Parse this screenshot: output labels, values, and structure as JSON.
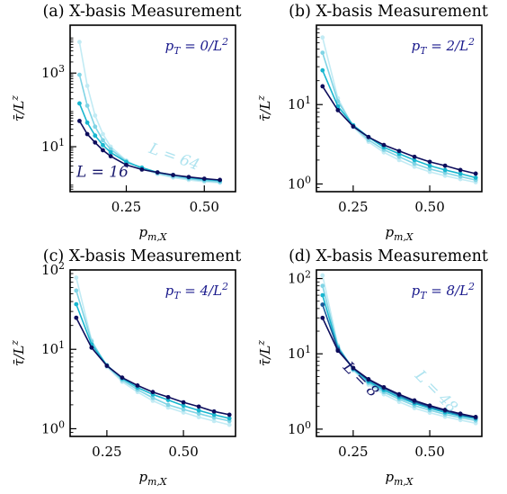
{
  "chart_data": [
    {
      "type": "line",
      "title": "(a) X-basis Measurement",
      "xlabel": "p_{m,X}",
      "ylabel": "τ̄/L^z",
      "xscale": "linear",
      "yscale": "log",
      "xlim": [
        0.07,
        0.6
      ],
      "ylim": [
        0.6,
        20000
      ],
      "xticks": [
        {
          "value": 0.25,
          "label": "0.25"
        },
        {
          "value": 0.5,
          "label": "0.50"
        }
      ],
      "yticks": [
        {
          "value": 10,
          "label": "10^1"
        },
        {
          "value": 1000,
          "label": "10^3"
        }
      ],
      "annotation": "p_T = 0/L^2",
      "series_labels": [
        {
          "text": "L = 64",
          "color": "#aee3ef",
          "x": 0.32,
          "y": 7,
          "rotate": 20
        },
        {
          "text": "L = 16",
          "color": "#1a1a6e",
          "x": 0.09,
          "y": 1.5,
          "rotate": 0
        }
      ],
      "series": [
        {
          "color": "#0d0d5c",
          "x": [
            0.1,
            0.125,
            0.15,
            0.175,
            0.2,
            0.25,
            0.3,
            0.35,
            0.4,
            0.45,
            0.5,
            0.55
          ],
          "y": [
            50,
            22,
            13,
            8,
            5.5,
            3.2,
            2.4,
            2.0,
            1.7,
            1.5,
            1.35,
            1.25
          ]
        },
        {
          "color": "#18b6cf",
          "x": [
            0.1,
            0.125,
            0.15,
            0.175,
            0.2,
            0.25,
            0.3,
            0.35,
            0.4,
            0.45,
            0.5,
            0.55
          ],
          "y": [
            150,
            45,
            20,
            11,
            7,
            3.8,
            2.7,
            2.0,
            1.7,
            1.45,
            1.3,
            1.2
          ]
        },
        {
          "color": "#80d4e5",
          "x": [
            0.1,
            0.125,
            0.15,
            0.175,
            0.2,
            0.25,
            0.3,
            0.35,
            0.4,
            0.45,
            0.5,
            0.55
          ],
          "y": [
            900,
            130,
            35,
            15,
            8.5,
            4,
            2.6,
            1.9,
            1.55,
            1.35,
            1.2,
            1.1
          ]
        },
        {
          "color": "#c2ebf4",
          "x": [
            0.1,
            0.125,
            0.15,
            0.175,
            0.2,
            0.25,
            0.3,
            0.35,
            0.4,
            0.45,
            0.5,
            0.55
          ],
          "y": [
            7000,
            450,
            70,
            22,
            10,
            4.2,
            2.5,
            1.8,
            1.45,
            1.25,
            1.12,
            1.05
          ]
        }
      ]
    },
    {
      "type": "line",
      "title": "(b) X-basis Measurement",
      "xlabel": "p_{m,X}",
      "ylabel": "τ̄/L^z",
      "xscale": "linear",
      "yscale": "log",
      "xlim": [
        0.13,
        0.67
      ],
      "ylim": [
        0.8,
        100
      ],
      "xticks": [
        {
          "value": 0.25,
          "label": "0.25"
        },
        {
          "value": 0.5,
          "label": "0.50"
        }
      ],
      "yticks": [
        {
          "value": 1,
          "label": "10^0"
        },
        {
          "value": 10,
          "label": "10^1"
        }
      ],
      "annotation": "p_T = 2/L^2",
      "series_labels": [],
      "series": [
        {
          "color": "#0d0d5c",
          "x": [
            0.15,
            0.2,
            0.25,
            0.3,
            0.35,
            0.4,
            0.45,
            0.5,
            0.55,
            0.6,
            0.65
          ],
          "y": [
            17,
            8.5,
            5.3,
            3.9,
            3.1,
            2.6,
            2.2,
            1.9,
            1.7,
            1.5,
            1.35
          ]
        },
        {
          "color": "#18b6cf",
          "x": [
            0.15,
            0.2,
            0.25,
            0.3,
            0.35,
            0.4,
            0.45,
            0.5,
            0.55,
            0.6,
            0.65
          ],
          "y": [
            27,
            9.5,
            5.5,
            3.9,
            2.9,
            2.4,
            2.0,
            1.7,
            1.5,
            1.35,
            1.2
          ]
        },
        {
          "color": "#80d4e5",
          "x": [
            0.15,
            0.2,
            0.25,
            0.3,
            0.35,
            0.4,
            0.45,
            0.5,
            0.55,
            0.6,
            0.65
          ],
          "y": [
            45,
            11,
            5.4,
            3.6,
            2.7,
            2.2,
            1.8,
            1.55,
            1.38,
            1.24,
            1.12
          ]
        },
        {
          "color": "#c2ebf4",
          "x": [
            0.15,
            0.2,
            0.25,
            0.3,
            0.35,
            0.4,
            0.45,
            0.5,
            0.55,
            0.6,
            0.65
          ],
          "y": [
            70,
            12,
            5.2,
            3.4,
            2.5,
            2.0,
            1.65,
            1.42,
            1.27,
            1.15,
            1.05
          ]
        }
      ]
    },
    {
      "type": "line",
      "title": "(c) X-basis Measurement",
      "xlabel": "p_{m,X}",
      "ylabel": "τ̄/L^z",
      "xscale": "linear",
      "yscale": "log",
      "xlim": [
        0.13,
        0.67
      ],
      "ylim": [
        0.8,
        100
      ],
      "xticks": [
        {
          "value": 0.25,
          "label": "0.25"
        },
        {
          "value": 0.5,
          "label": "0.50"
        }
      ],
      "yticks": [
        {
          "value": 1,
          "label": "10^0"
        },
        {
          "value": 10,
          "label": "10^1"
        },
        {
          "value": 100,
          "label": "10^2"
        }
      ],
      "annotation": "p_T = 4/L^2",
      "series_labels": [],
      "series": [
        {
          "color": "#0d0d5c",
          "x": [
            0.15,
            0.2,
            0.25,
            0.3,
            0.35,
            0.4,
            0.45,
            0.5,
            0.55,
            0.6,
            0.65
          ],
          "y": [
            25,
            10.5,
            6.2,
            4.4,
            3.5,
            2.9,
            2.5,
            2.15,
            1.9,
            1.65,
            1.5
          ]
        },
        {
          "color": "#18b6cf",
          "x": [
            0.15,
            0.2,
            0.25,
            0.3,
            0.35,
            0.4,
            0.45,
            0.5,
            0.55,
            0.6,
            0.65
          ],
          "y": [
            37,
            11.5,
            6.3,
            4.3,
            3.3,
            2.7,
            2.3,
            1.95,
            1.7,
            1.5,
            1.35
          ]
        },
        {
          "color": "#80d4e5",
          "x": [
            0.15,
            0.2,
            0.25,
            0.3,
            0.35,
            0.4,
            0.45,
            0.5,
            0.55,
            0.6,
            0.65
          ],
          "y": [
            55,
            12.5,
            6.2,
            4.1,
            3.1,
            2.45,
            2.0,
            1.75,
            1.55,
            1.38,
            1.25
          ]
        },
        {
          "color": "#c2ebf4",
          "x": [
            0.15,
            0.2,
            0.25,
            0.3,
            0.35,
            0.4,
            0.45,
            0.5,
            0.55,
            0.6,
            0.65
          ],
          "y": [
            80,
            13,
            6,
            3.9,
            2.9,
            2.25,
            1.85,
            1.6,
            1.4,
            1.25,
            1.12
          ]
        }
      ]
    },
    {
      "type": "line",
      "title": "(d) X-basis Measurement",
      "xlabel": "p_{m,X}",
      "ylabel": "τ̄/L^z",
      "xscale": "linear",
      "yscale": "log",
      "xlim": [
        0.13,
        0.67
      ],
      "ylim": [
        0.8,
        130
      ],
      "xticks": [
        {
          "value": 0.25,
          "label": "0.25"
        },
        {
          "value": 0.5,
          "label": "0.50"
        }
      ],
      "yticks": [
        {
          "value": 1,
          "label": "10^0"
        },
        {
          "value": 10,
          "label": "10^1"
        },
        {
          "value": 100,
          "label": "10^2"
        }
      ],
      "annotation": "p_T = 8/L^2",
      "series_labels": [
        {
          "text": "L = 48",
          "color": "#aee3ef",
          "x": 0.45,
          "y": 5,
          "rotate": 45
        },
        {
          "text": "L = 8",
          "color": "#1a1a6e",
          "x": 0.215,
          "y": 6.5,
          "rotate": 45
        }
      ],
      "series": [
        {
          "color": "#0d0d5c",
          "x": [
            0.15,
            0.2,
            0.25,
            0.3,
            0.35,
            0.4,
            0.45,
            0.5,
            0.55,
            0.6,
            0.65
          ],
          "y": [
            30,
            11,
            6.5,
            4.6,
            3.6,
            2.9,
            2.4,
            2.05,
            1.8,
            1.6,
            1.45
          ]
        },
        {
          "color": "#1a5a9a",
          "x": [
            0.15,
            0.2,
            0.25,
            0.3,
            0.35,
            0.4,
            0.45,
            0.5,
            0.55,
            0.6,
            0.65
          ],
          "y": [
            45,
            11.5,
            6.4,
            4.5,
            3.5,
            2.8,
            2.3,
            1.98,
            1.75,
            1.55,
            1.42
          ]
        },
        {
          "color": "#18b6cf",
          "x": [
            0.15,
            0.2,
            0.25,
            0.3,
            0.35,
            0.4,
            0.45,
            0.5,
            0.55,
            0.6,
            0.65
          ],
          "y": [
            60,
            12,
            6.3,
            4.3,
            3.3,
            2.65,
            2.2,
            1.9,
            1.67,
            1.5,
            1.38
          ]
        },
        {
          "color": "#80d4e5",
          "x": [
            0.15,
            0.2,
            0.25,
            0.3,
            0.35,
            0.4,
            0.45,
            0.5,
            0.55,
            0.6,
            0.65
          ],
          "y": [
            80,
            12.5,
            6.2,
            4.1,
            3.1,
            2.5,
            2.05,
            1.78,
            1.57,
            1.42,
            1.3
          ]
        },
        {
          "color": "#c2ebf4",
          "x": [
            0.15,
            0.2,
            0.25,
            0.3,
            0.35,
            0.4,
            0.45,
            0.5,
            0.55,
            0.6,
            0.65
          ],
          "y": [
            110,
            13,
            6,
            3.9,
            2.9,
            2.3,
            1.9,
            1.65,
            1.46,
            1.32,
            1.2
          ]
        }
      ]
    }
  ]
}
